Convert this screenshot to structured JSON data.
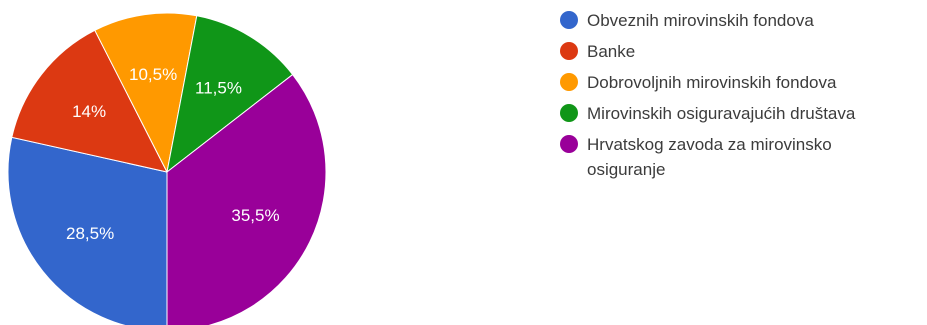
{
  "chart_data": {
    "type": "pie",
    "start_angle_deg": 90,
    "direction": "clockwise",
    "legend_position": "right",
    "slices": [
      {
        "label": "Obveznih mirovinskih fondova",
        "value": 28.5,
        "display": "28,5%",
        "color": "#3366cc"
      },
      {
        "label": "Banke",
        "value": 14,
        "display": "14%",
        "color": "#dc3912"
      },
      {
        "label": "Dobrovoljnih mirovinskih fondova",
        "value": 10.5,
        "display": "10,5%",
        "color": "#ff9900"
      },
      {
        "label": "Mirovinskih osiguravajućih društava",
        "value": 11.5,
        "display": "11,5%",
        "color": "#109618"
      },
      {
        "label": "Hrvatskog zavoda za mirovinsko osiguranje",
        "value": 35.5,
        "display": "35,5%",
        "color": "#990099"
      }
    ]
  }
}
